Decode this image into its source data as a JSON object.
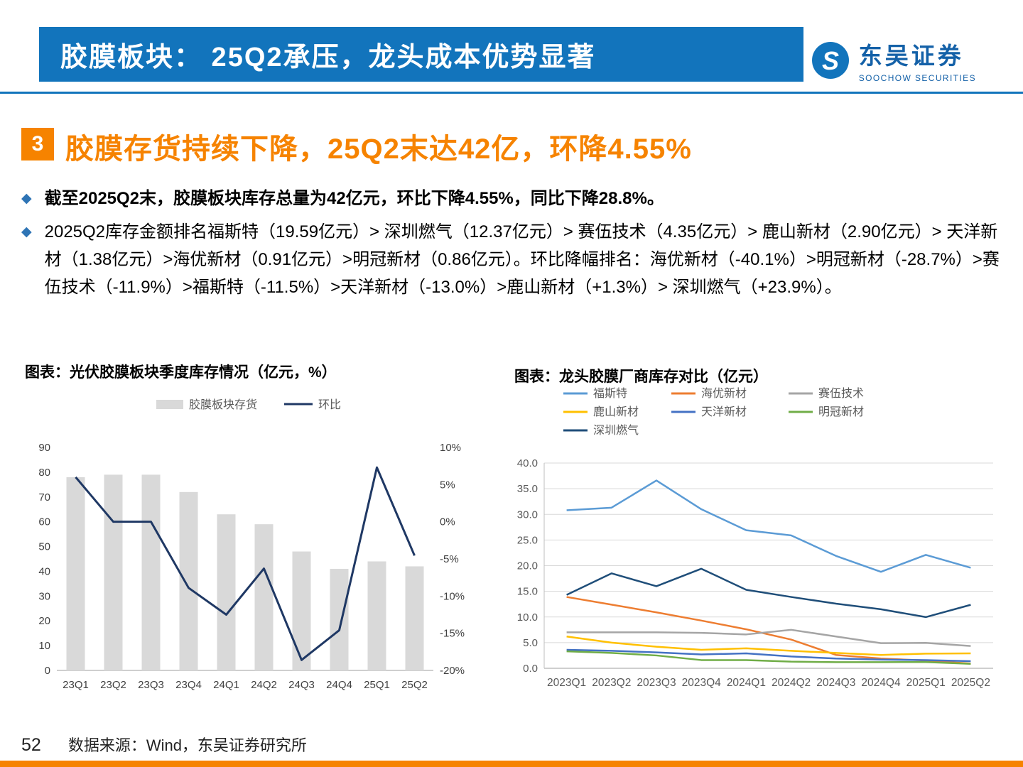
{
  "theme": {
    "primary_blue": "#1274BC",
    "accent_orange": "#F68300",
    "bullet_blue": "#2E74B5",
    "navy": "#1F3864"
  },
  "icons": {
    "bullet": "◆"
  },
  "header": {
    "title": "胶膜板块： 25Q2承压，龙头成本优势显著",
    "logo": {
      "name": "东吴证券",
      "sub": "SOOCHOW SECURITIES"
    }
  },
  "section": {
    "number": "3",
    "title": "胶膜存货持续下降，25Q2末达42亿，环降4.55%"
  },
  "bullets": [
    {
      "text": "截至2025Q2末，胶膜板块库存总量为42亿元，环比下降4.55%，同比下降28.8%。",
      "bold": true
    },
    {
      "text": "2025Q2库存金额排名福斯特（19.59亿元）> 深圳燃气（12.37亿元）> 赛伍技术（4.35亿元）> 鹿山新材（2.90亿元）> 天洋新材（1.38亿元）>海优新材（0.91亿元）>明冠新材（0.86亿元）。环比降幅排名：海优新材（-40.1%）>明冠新材（-28.7%）>赛伍技术（-11.9%）>福斯特（-11.5%）>天洋新材（-13.0%）>鹿山新材（+1.3%）> 深圳燃气（+23.9%）。",
      "bold": false
    }
  ],
  "chart_data": [
    {
      "type": "bar+line",
      "title": "图表：光伏胶膜板块季度库存情况（亿元，%）",
      "categories": [
        "23Q1",
        "23Q2",
        "23Q3",
        "23Q4",
        "24Q1",
        "24Q2",
        "24Q3",
        "24Q4",
        "25Q1",
        "25Q2"
      ],
      "series": [
        {
          "name": "胶膜板块存货",
          "kind": "bar",
          "axis": "left",
          "color": "#D9D9D9",
          "values": [
            78,
            79,
            79,
            72,
            63,
            59,
            48,
            41,
            44,
            42
          ]
        },
        {
          "name": "环比",
          "kind": "line",
          "axis": "right",
          "color": "#1F3864",
          "values": [
            6.0,
            0.0,
            0.0,
            -8.9,
            -12.5,
            -6.3,
            -18.6,
            -14.6,
            7.3,
            -4.55
          ]
        }
      ],
      "left_axis": {
        "min": 0,
        "max": 90,
        "step": 10
      },
      "right_axis": {
        "min": -20,
        "max": 10,
        "step": 5,
        "suffix": "%"
      },
      "legend_position": "top",
      "grid": false
    },
    {
      "type": "line",
      "title": "图表：龙头胶膜厂商库存对比（亿元）",
      "categories": [
        "2023Q1",
        "2023Q2",
        "2023Q3",
        "2023Q4",
        "2024Q1",
        "2024Q2",
        "2024Q3",
        "2024Q4",
        "2025Q1",
        "2025Q2"
      ],
      "series": [
        {
          "name": "福斯特",
          "color": "#5B9BD5",
          "values": [
            30.8,
            31.3,
            36.6,
            31.0,
            26.9,
            25.9,
            21.9,
            18.8,
            22.1,
            19.59
          ]
        },
        {
          "name": "海优新材",
          "color": "#ED7D31",
          "values": [
            13.9,
            12.4,
            10.9,
            9.3,
            7.6,
            5.6,
            2.6,
            1.9,
            1.52,
            0.91
          ]
        },
        {
          "name": "赛伍技术",
          "color": "#A5A5A5",
          "values": [
            7.0,
            7.0,
            7.0,
            6.9,
            6.6,
            7.5,
            6.2,
            4.9,
            4.94,
            4.35
          ]
        },
        {
          "name": "鹿山新材",
          "color": "#FFC000",
          "values": [
            6.2,
            5.0,
            4.2,
            3.6,
            3.9,
            3.4,
            3.0,
            2.6,
            2.86,
            2.9
          ]
        },
        {
          "name": "天洋新材",
          "color": "#4472C4",
          "values": [
            3.6,
            3.4,
            3.1,
            2.7,
            2.9,
            2.3,
            1.9,
            1.7,
            1.59,
            1.38
          ]
        },
        {
          "name": "明冠新材",
          "color": "#70AD47",
          "values": [
            3.3,
            3.0,
            2.5,
            1.6,
            1.6,
            1.3,
            1.2,
            1.2,
            1.21,
            0.86
          ]
        },
        {
          "name": "深圳燃气",
          "color": "#1F4E79",
          "values": [
            14.3,
            18.5,
            16.0,
            19.4,
            15.3,
            13.9,
            12.6,
            11.5,
            9.98,
            12.37
          ]
        }
      ],
      "y_axis": {
        "min": 0,
        "max": 40,
        "step": 5
      },
      "legend_position": "top",
      "grid": true
    }
  ],
  "footer": {
    "page": "52",
    "source": "数据来源：Wind，东吴证券研究所"
  }
}
